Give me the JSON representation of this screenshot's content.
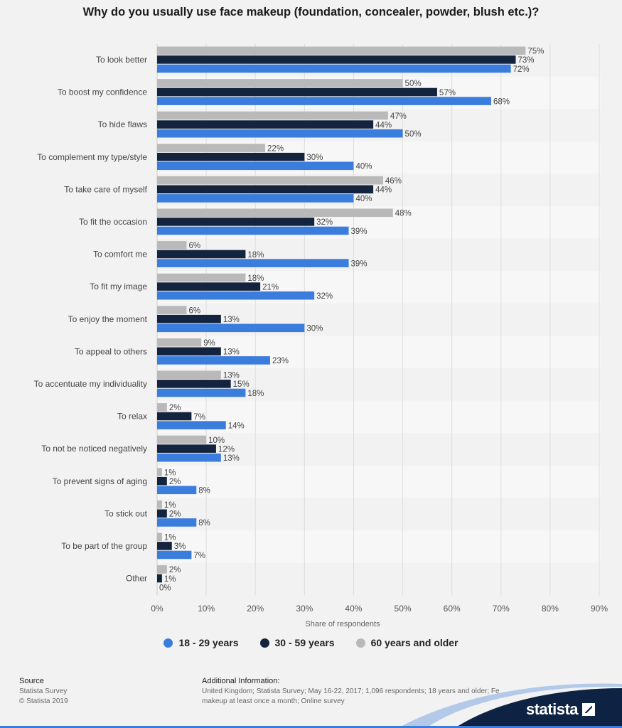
{
  "chart_data": {
    "type": "bar",
    "orientation": "horizontal",
    "title": "Why do you usually use face makeup (foundation, concealer, powder, blush etc.)?",
    "xlabel": "Share of respondents",
    "xlim": [
      0,
      90
    ],
    "x_ticks": [
      "0%",
      "10%",
      "20%",
      "30%",
      "40%",
      "50%",
      "60%",
      "70%",
      "80%",
      "90%"
    ],
    "grid": "vertical",
    "legend_position": "bottom",
    "categories": [
      "To look better",
      "To boost my confidence",
      "To hide flaws",
      "To complement my type/style",
      "To take care of myself",
      "To fit the occasion",
      "To comfort me",
      "To fit my image",
      "To enjoy the moment",
      "To appeal to others",
      "To accentuate my individuality",
      "To relax",
      "To not be noticed negatively",
      "To prevent signs of aging",
      "To stick out",
      "To be part of the group",
      "Other"
    ],
    "series": [
      {
        "name": "60 years and older",
        "color": "#b9b9b9",
        "values": [
          75,
          50,
          47,
          22,
          46,
          48,
          6,
          18,
          6,
          9,
          13,
          2,
          10,
          1,
          1,
          1,
          2
        ]
      },
      {
        "name": "30 - 59 years",
        "color": "#14243f",
        "values": [
          73,
          57,
          44,
          30,
          44,
          32,
          18,
          21,
          13,
          13,
          15,
          7,
          12,
          2,
          2,
          3,
          1
        ]
      },
      {
        "name": "18 - 29 years",
        "color": "#3b7ddd",
        "values": [
          72,
          68,
          50,
          40,
          40,
          39,
          39,
          32,
          30,
          23,
          18,
          14,
          13,
          8,
          8,
          7,
          0
        ]
      }
    ]
  },
  "legend": [
    {
      "label": "18 - 29 years",
      "color": "#3b7ddd"
    },
    {
      "label": "30 - 59 years",
      "color": "#14243f"
    },
    {
      "label": "60 years and older",
      "color": "#b9b9b9"
    }
  ],
  "footer": {
    "source_heading": "Source",
    "source_line1": "Statista Survey",
    "source_line2": "© Statista 2019",
    "info_heading": "Additional Information:",
    "info_line1": "United Kingdom; Statista Survey; May 16-22, 2017; 1,096 respondents; 18 years and older; Fe",
    "info_line2": "makeup at least once a month; Online survey"
  },
  "brand": {
    "logo_text": "statista",
    "color": "#0e2244"
  }
}
